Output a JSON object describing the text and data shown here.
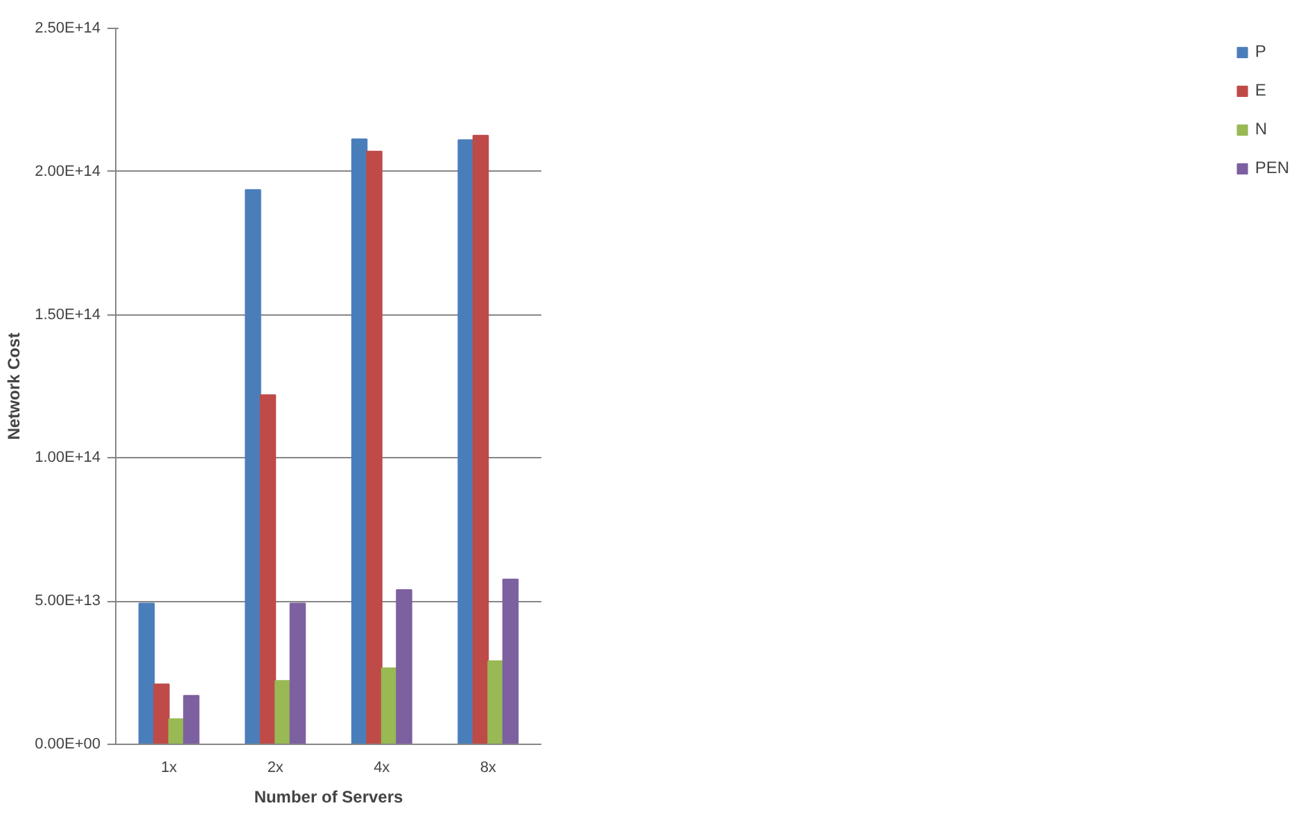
{
  "chart_data": {
    "type": "bar",
    "xlabel": "Number of Servers",
    "ylabel": "Network Cost",
    "categories": [
      "1x",
      "2x",
      "4x",
      "8x"
    ],
    "series": [
      {
        "name": "P",
        "color": "#4a7ebb",
        "values": [
          49200000000000.0,
          193600000000000.0,
          211300000000000.0,
          211000000000000.0
        ]
      },
      {
        "name": "E",
        "color": "#be4b48",
        "values": [
          21000000000000.0,
          122000000000000.0,
          207000000000000.0,
          212600000000000.0
        ]
      },
      {
        "name": "N",
        "color": "#98b954",
        "values": [
          8800000000000.0,
          22200000000000.0,
          26600000000000.0,
          29100000000000.0
        ]
      },
      {
        "name": "PEN",
        "color": "#7d60a0",
        "values": [
          17000000000000.0,
          49200000000000.0,
          53900000000000.0,
          57600000000000.0
        ]
      }
    ],
    "ylim": [
      0,
      250000000000000.0
    ],
    "yticks": [
      {
        "value": 0,
        "label": "0.00E+00"
      },
      {
        "value": 50000000000000.0,
        "label": "5.00E+13"
      },
      {
        "value": 100000000000000.0,
        "label": "1.00E+14"
      },
      {
        "value": 150000000000000.0,
        "label": "1.50E+14"
      },
      {
        "value": 200000000000000.0,
        "label": "2.00E+14"
      },
      {
        "value": 250000000000000.0,
        "label": "2.50E+14"
      }
    ],
    "grid": "y",
    "legend": "right"
  }
}
